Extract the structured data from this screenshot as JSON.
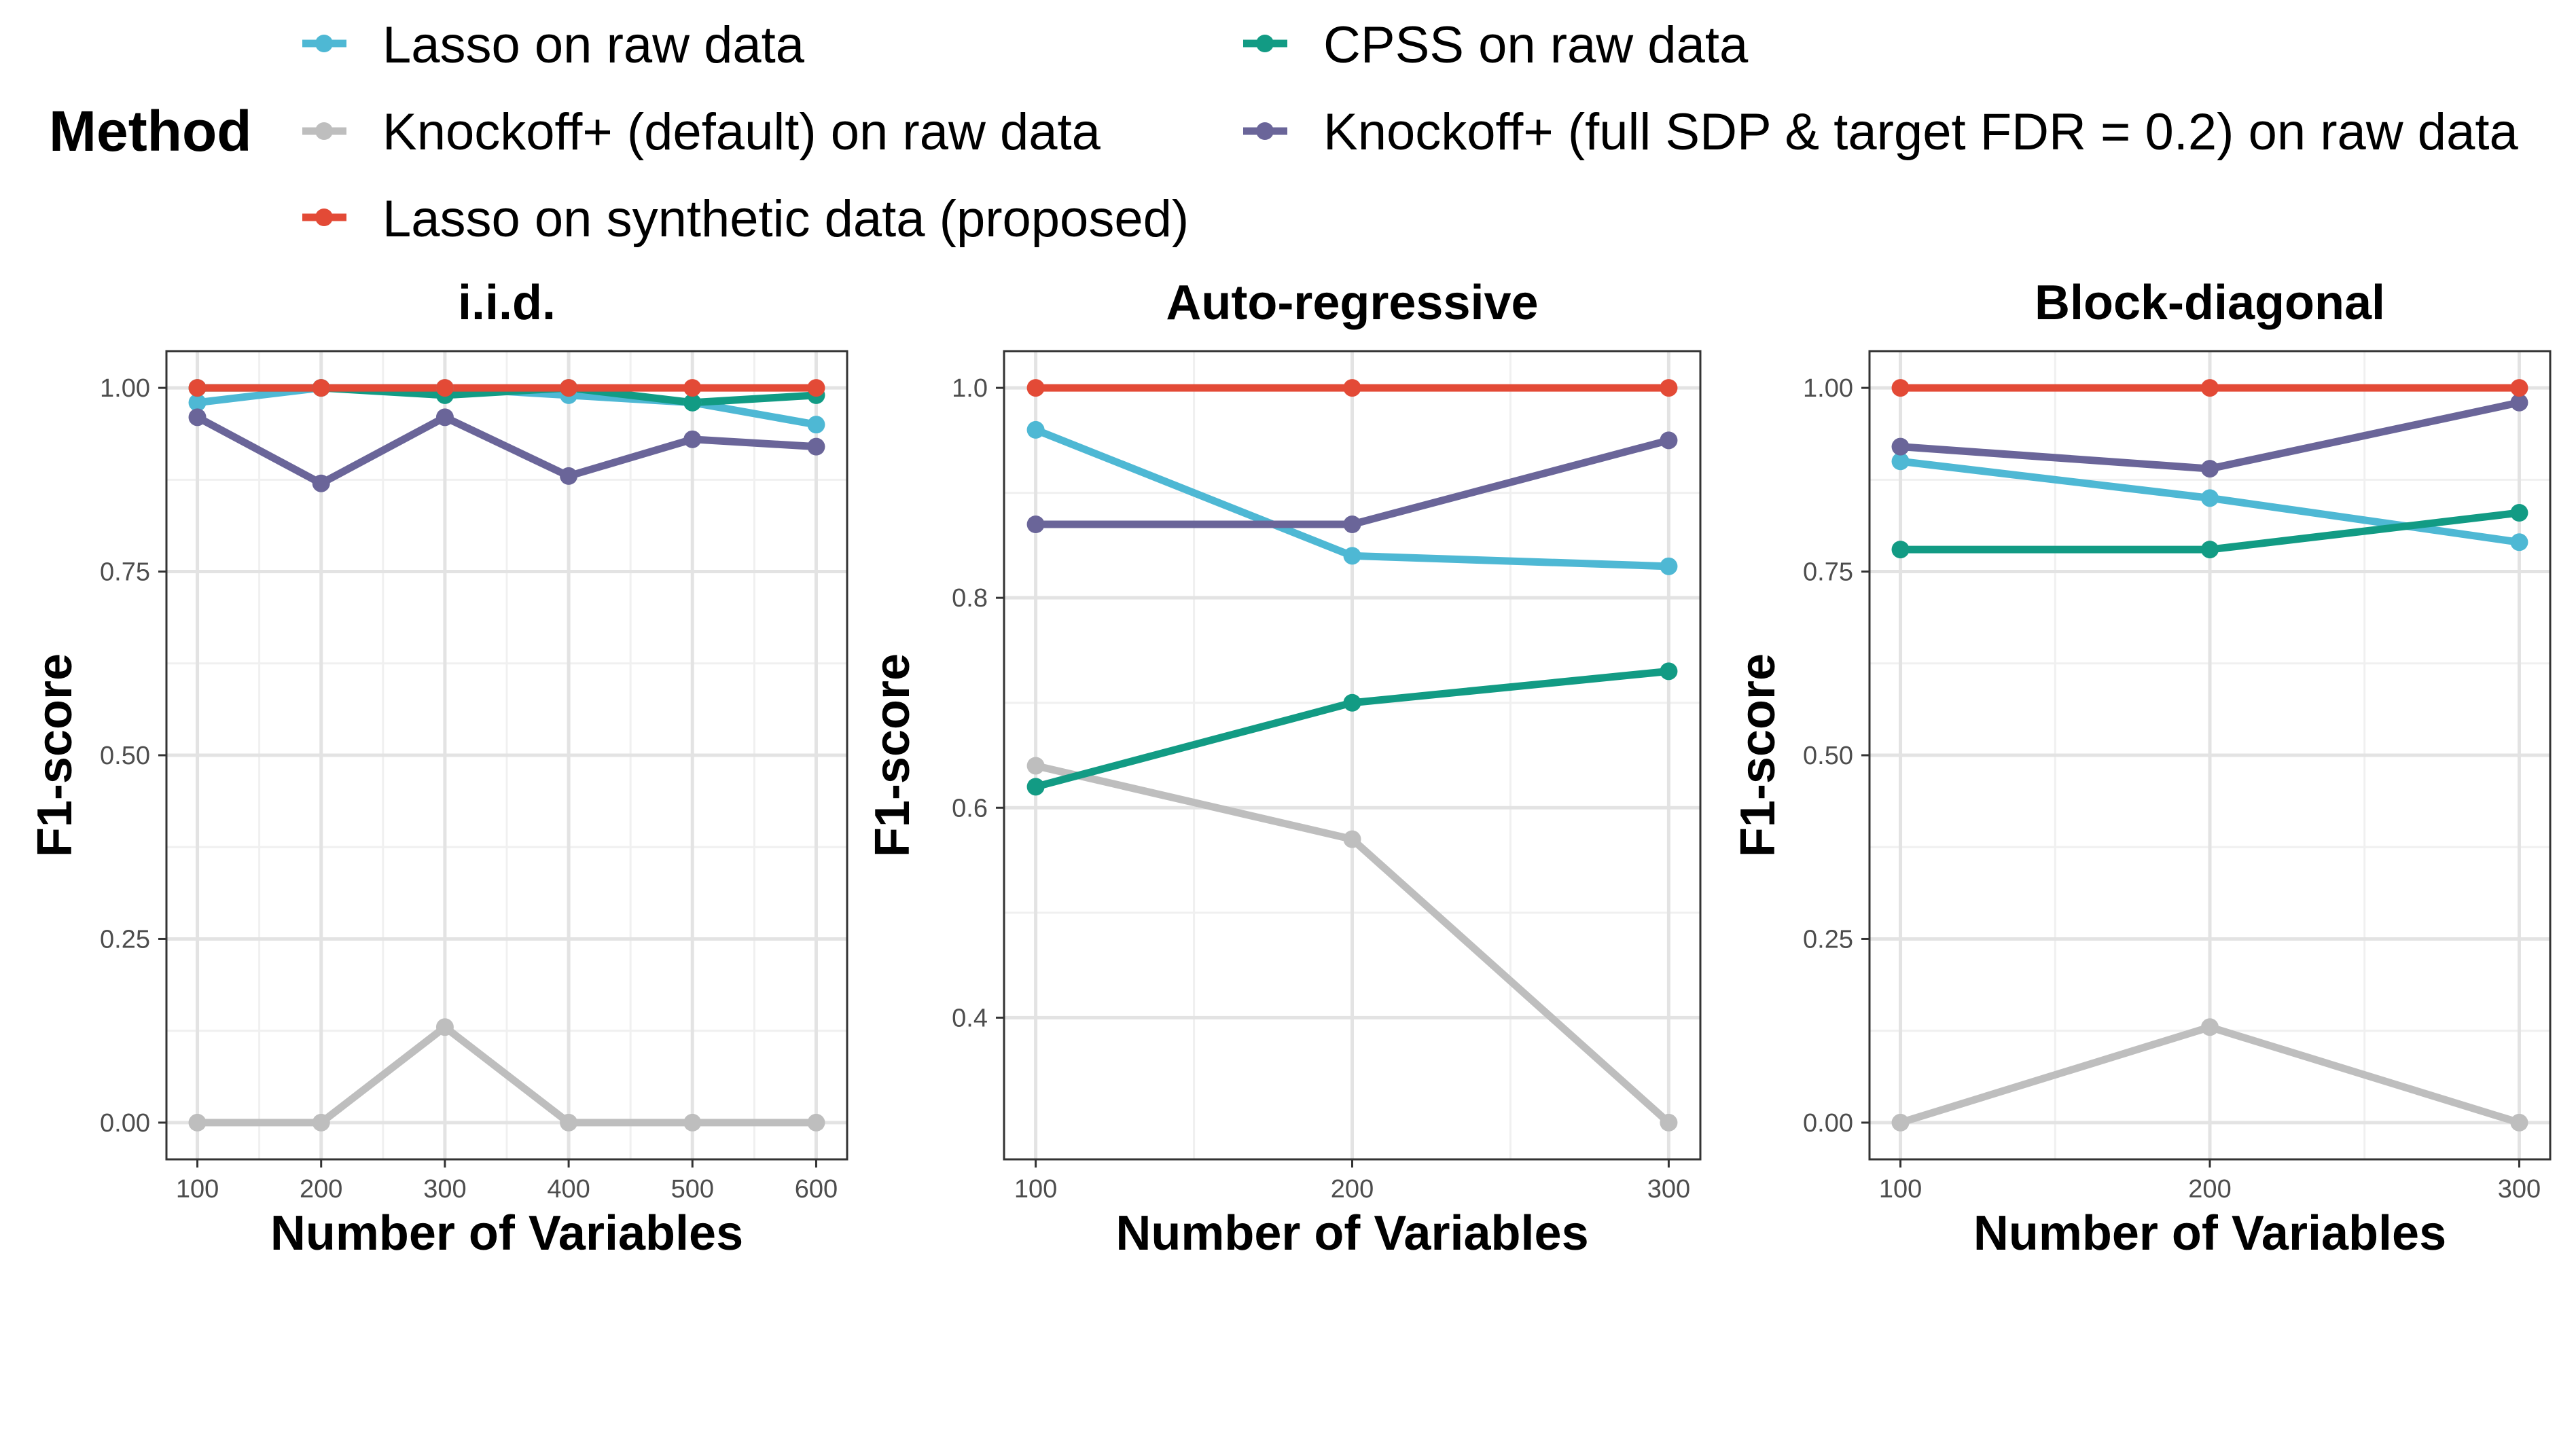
{
  "legend": {
    "title": "Method",
    "entries": [
      {
        "name": "Lasso on raw data",
        "color": "#4EB8D4"
      },
      {
        "name": "Knockoff+ (default) on raw data",
        "color": "#BEBEBE"
      },
      {
        "name": "Lasso on synthetic data (proposed)",
        "color": "#E34A36"
      },
      {
        "name": "CPSS on raw data",
        "color": "#129B84"
      },
      {
        "name": "Knockoff+ (full SDP & target FDR = 0.2) on raw data",
        "color": "#6A6599"
      }
    ]
  },
  "chart_data": [
    {
      "type": "line",
      "title": "i.i.d.",
      "xlabel": "Number of Variables",
      "ylabel": "F1-score",
      "x": [
        100,
        200,
        300,
        400,
        500,
        600
      ],
      "xlim": [
        75,
        625
      ],
      "ylim": [
        -0.05,
        1.05
      ],
      "xticks": [
        100,
        200,
        300,
        400,
        500,
        600
      ],
      "yticks": [
        0.0,
        0.25,
        0.5,
        0.75,
        1.0
      ],
      "ytick_labels": [
        "0.00",
        "0.25",
        "0.50",
        "0.75",
        "1.00"
      ],
      "series": [
        {
          "name": "Lasso on raw data",
          "values": [
            0.98,
            1.0,
            1.0,
            0.99,
            0.98,
            0.95
          ]
        },
        {
          "name": "Knockoff+ (default) on raw data",
          "values": [
            0.0,
            0.0,
            0.13,
            0.0,
            0.0,
            0.0
          ]
        },
        {
          "name": "CPSS on raw data",
          "values": [
            1.0,
            1.0,
            0.99,
            1.0,
            0.98,
            0.99
          ]
        },
        {
          "name": "Knockoff+ (full SDP & target FDR = 0.2) on raw data",
          "values": [
            0.96,
            0.87,
            0.96,
            0.88,
            0.93,
            0.92
          ]
        },
        {
          "name": "Lasso on synthetic data (proposed)",
          "values": [
            1.0,
            1.0,
            1.0,
            1.0,
            1.0,
            1.0
          ]
        }
      ]
    },
    {
      "type": "line",
      "title": "Auto-regressive",
      "xlabel": "Number of Variables",
      "ylabel": "F1-score",
      "x": [
        100,
        200,
        300
      ],
      "xlim": [
        90,
        310
      ],
      "ylim": [
        0.265,
        1.035
      ],
      "xticks": [
        100,
        200,
        300
      ],
      "yticks": [
        0.4,
        0.6,
        0.8,
        1.0
      ],
      "ytick_labels": [
        "0.4",
        "0.6",
        "0.8",
        "1.0"
      ],
      "series": [
        {
          "name": "Lasso on raw data",
          "values": [
            0.96,
            0.84,
            0.83
          ]
        },
        {
          "name": "Knockoff+ (default) on raw data",
          "values": [
            0.64,
            0.57,
            0.3
          ]
        },
        {
          "name": "CPSS on raw data",
          "values": [
            0.62,
            0.7,
            0.73
          ]
        },
        {
          "name": "Knockoff+ (full SDP & target FDR = 0.2) on raw data",
          "values": [
            0.87,
            0.87,
            0.95
          ]
        },
        {
          "name": "Lasso on synthetic data (proposed)",
          "values": [
            1.0,
            1.0,
            1.0
          ]
        }
      ]
    },
    {
      "type": "line",
      "title": "Block-diagonal",
      "xlabel": "Number of Variables",
      "ylabel": "F1-score",
      "x": [
        100,
        200,
        300
      ],
      "xlim": [
        90,
        310
      ],
      "ylim": [
        -0.05,
        1.05
      ],
      "xticks": [
        100,
        200,
        300
      ],
      "yticks": [
        0.0,
        0.25,
        0.5,
        0.75,
        1.0
      ],
      "ytick_labels": [
        "0.00",
        "0.25",
        "0.50",
        "0.75",
        "1.00"
      ],
      "series": [
        {
          "name": "Lasso on raw data",
          "values": [
            0.9,
            0.85,
            0.79
          ]
        },
        {
          "name": "Knockoff+ (default) on raw data",
          "values": [
            0.0,
            0.13,
            0.0
          ]
        },
        {
          "name": "CPSS on raw data",
          "values": [
            0.78,
            0.78,
            0.83
          ]
        },
        {
          "name": "Knockoff+ (full SDP & target FDR = 0.2) on raw data",
          "values": [
            0.92,
            0.89,
            0.98
          ]
        },
        {
          "name": "Lasso on synthetic data (proposed)",
          "values": [
            1.0,
            1.0,
            1.0
          ]
        }
      ]
    }
  ]
}
